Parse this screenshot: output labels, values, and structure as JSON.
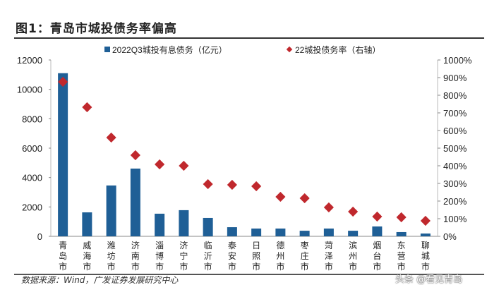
{
  "title": "图1：青岛市城投债务率偏高",
  "source": "数据来源：Wind，广发证券发展研究中心",
  "watermark": "头条 @看见青岛",
  "chart_data": {
    "type": "bar+scatter",
    "categories": [
      "青岛市",
      "威海市",
      "潍坊市",
      "济南市",
      "淄博市",
      "济宁市",
      "临沂市",
      "泰安市",
      "日照市",
      "德州市",
      "枣庄市",
      "菏泽市",
      "滨州市",
      "烟台市",
      "东营市",
      "聊城市"
    ],
    "series": [
      {
        "name": "2022Q3城投有息债务（亿元）",
        "type": "bar",
        "axis": "left",
        "color": "#1f5f96",
        "values": [
          11100,
          1630,
          3460,
          4610,
          1540,
          1780,
          1250,
          620,
          530,
          530,
          380,
          530,
          380,
          670,
          290,
          190
        ]
      },
      {
        "name": "22城投债务率（右轴）",
        "type": "scatter",
        "axis": "right",
        "color": "#c0282d",
        "values": [
          876,
          732,
          560,
          460,
          408,
          400,
          296,
          292,
          284,
          224,
          216,
          164,
          140,
          112,
          108,
          88
        ]
      }
    ],
    "ylim_left": [
      0,
      12000
    ],
    "yticks_left": [
      "0",
      "2000",
      "4000",
      "6000",
      "8000",
      "10000",
      "12000"
    ],
    "ylim_right": [
      0,
      1000
    ],
    "yticks_right": [
      "0%",
      "100%",
      "200%",
      "300%",
      "400%",
      "500%",
      "600%",
      "700%",
      "800%",
      "900%",
      "1000%"
    ],
    "legend": "top",
    "grid": false
  }
}
